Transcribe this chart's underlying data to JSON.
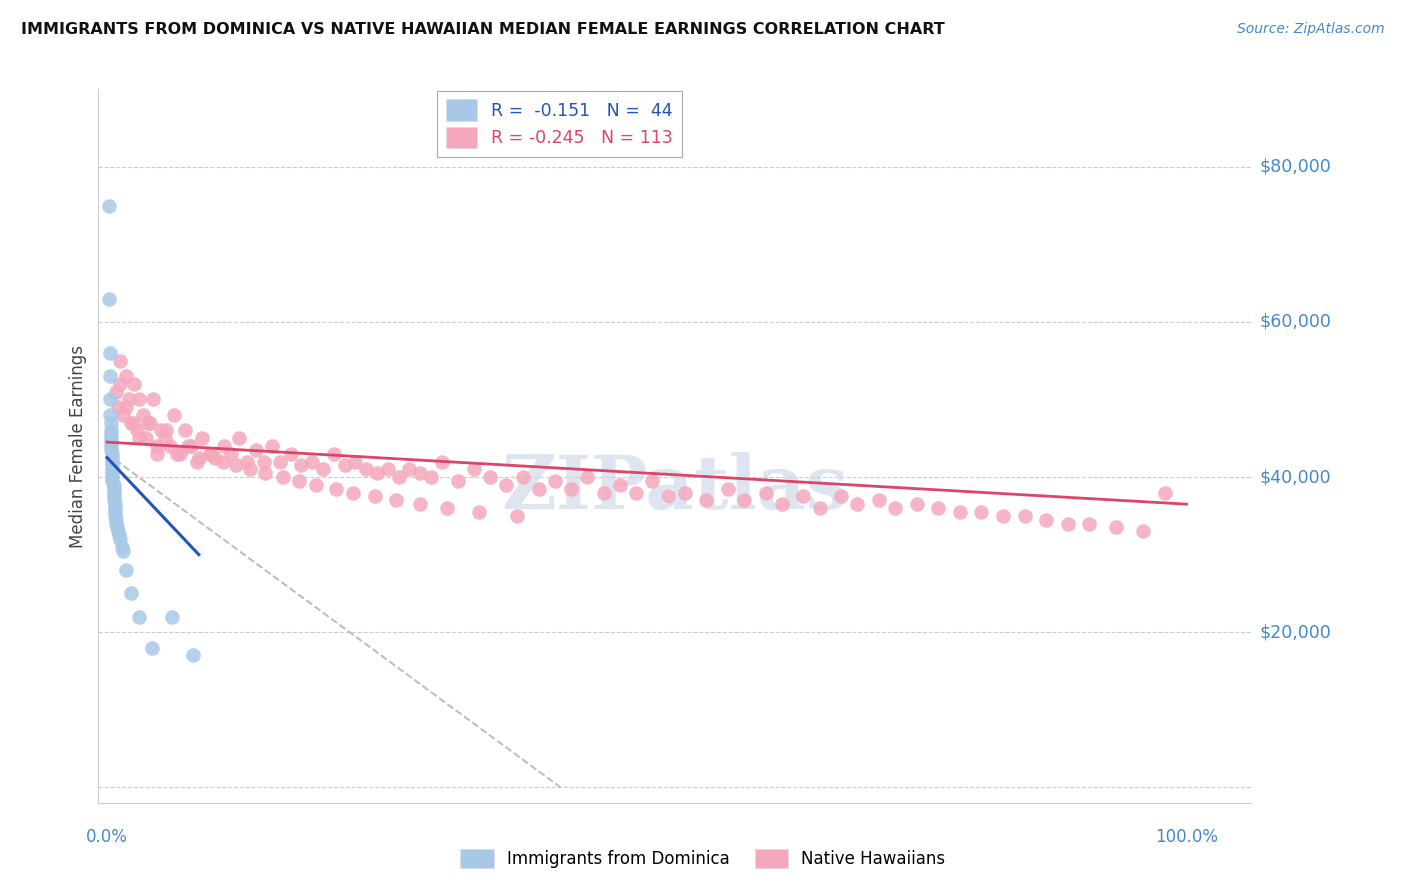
{
  "title": "IMMIGRANTS FROM DOMINICA VS NATIVE HAWAIIAN MEDIAN FEMALE EARNINGS CORRELATION CHART",
  "source": "Source: ZipAtlas.com",
  "ylabel": "Median Female Earnings",
  "ytick_values": [
    0,
    20000,
    40000,
    60000,
    80000
  ],
  "ytick_labels": [
    "",
    "$20,000",
    "$40,000",
    "$60,000",
    "$80,000"
  ],
  "ymax": 90000,
  "ymin": -2000,
  "xmin": -0.008,
  "xmax": 1.06,
  "blue_color": "#a8c8e8",
  "pink_color": "#f5a8bc",
  "blue_line_color": "#2255bb",
  "pink_line_color": "#dd4466",
  "gray_dash_color": "#bbbbbb",
  "title_color": "#111111",
  "source_color": "#4488cc",
  "axis_label_color": "#4488cc",
  "watermark_color": "#ccd8ea",
  "grid_color": "#cccccc",
  "blue_scatter_x": [
    0.002,
    0.002,
    0.003,
    0.003,
    0.003,
    0.003,
    0.004,
    0.004,
    0.004,
    0.004,
    0.004,
    0.004,
    0.004,
    0.005,
    0.005,
    0.005,
    0.005,
    0.005,
    0.005,
    0.005,
    0.005,
    0.006,
    0.006,
    0.006,
    0.006,
    0.006,
    0.007,
    0.007,
    0.007,
    0.007,
    0.008,
    0.008,
    0.009,
    0.01,
    0.011,
    0.012,
    0.014,
    0.015,
    0.018,
    0.022,
    0.03,
    0.042,
    0.06,
    0.08
  ],
  "blue_scatter_y": [
    75000,
    63000,
    56000,
    53000,
    50000,
    48000,
    47000,
    46000,
    45500,
    45000,
    44500,
    44000,
    43500,
    43000,
    42500,
    42000,
    41500,
    41000,
    40500,
    40000,
    39500,
    39000,
    38500,
    38000,
    37500,
    37000,
    36500,
    36000,
    35500,
    35000,
    34500,
    34000,
    33500,
    33000,
    32500,
    32000,
    31000,
    30500,
    28000,
    25000,
    22000,
    18000,
    22000,
    17000
  ],
  "pink_scatter_x": [
    0.008,
    0.01,
    0.012,
    0.015,
    0.018,
    0.02,
    0.022,
    0.025,
    0.028,
    0.03,
    0.033,
    0.036,
    0.04,
    0.043,
    0.046,
    0.05,
    0.054,
    0.058,
    0.062,
    0.068,
    0.072,
    0.078,
    0.083,
    0.088,
    0.095,
    0.1,
    0.108,
    0.115,
    0.122,
    0.13,
    0.138,
    0.145,
    0.153,
    0.16,
    0.17,
    0.18,
    0.19,
    0.2,
    0.21,
    0.22,
    0.23,
    0.24,
    0.25,
    0.26,
    0.27,
    0.28,
    0.29,
    0.3,
    0.31,
    0.325,
    0.34,
    0.355,
    0.37,
    0.385,
    0.4,
    0.415,
    0.43,
    0.445,
    0.46,
    0.475,
    0.49,
    0.505,
    0.52,
    0.535,
    0.555,
    0.575,
    0.59,
    0.61,
    0.625,
    0.645,
    0.66,
    0.68,
    0.695,
    0.715,
    0.73,
    0.75,
    0.77,
    0.79,
    0.81,
    0.83,
    0.85,
    0.87,
    0.89,
    0.91,
    0.935,
    0.96,
    0.98,
    0.012,
    0.018,
    0.024,
    0.03,
    0.038,
    0.046,
    0.055,
    0.065,
    0.075,
    0.085,
    0.096,
    0.107,
    0.119,
    0.132,
    0.146,
    0.163,
    0.178,
    0.194,
    0.212,
    0.228,
    0.248,
    0.268,
    0.29,
    0.315,
    0.345,
    0.38
  ],
  "pink_scatter_y": [
    51000,
    49000,
    52000,
    48000,
    53000,
    50000,
    47000,
    52000,
    46000,
    50000,
    48000,
    45000,
    47000,
    50000,
    43000,
    46000,
    45000,
    44000,
    48000,
    43000,
    46000,
    44000,
    42000,
    45000,
    43000,
    42500,
    44000,
    43000,
    45000,
    42000,
    43500,
    42000,
    44000,
    42000,
    43000,
    41500,
    42000,
    41000,
    43000,
    41500,
    42000,
    41000,
    40500,
    41000,
    40000,
    41000,
    40500,
    40000,
    42000,
    39500,
    41000,
    40000,
    39000,
    40000,
    38500,
    39500,
    38500,
    40000,
    38000,
    39000,
    38000,
    39500,
    37500,
    38000,
    37000,
    38500,
    37000,
    38000,
    36500,
    37500,
    36000,
    37500,
    36500,
    37000,
    36000,
    36500,
    36000,
    35500,
    35500,
    35000,
    35000,
    34500,
    34000,
    34000,
    33500,
    33000,
    38000,
    55000,
    49000,
    47000,
    45000,
    47000,
    44000,
    46000,
    43000,
    44000,
    42500,
    43000,
    42000,
    41500,
    41000,
    40500,
    40000,
    39500,
    39000,
    38500,
    38000,
    37500,
    37000,
    36500,
    36000,
    35500,
    35000
  ],
  "blue_trend_x": [
    0.0,
    0.085
  ],
  "blue_trend_y": [
    42500,
    30000
  ],
  "pink_trend_x": [
    0.0,
    1.0
  ],
  "pink_trend_y": [
    44500,
    36500
  ],
  "gray_trend_x": [
    0.0,
    0.42
  ],
  "gray_trend_y": [
    43000,
    0
  ]
}
